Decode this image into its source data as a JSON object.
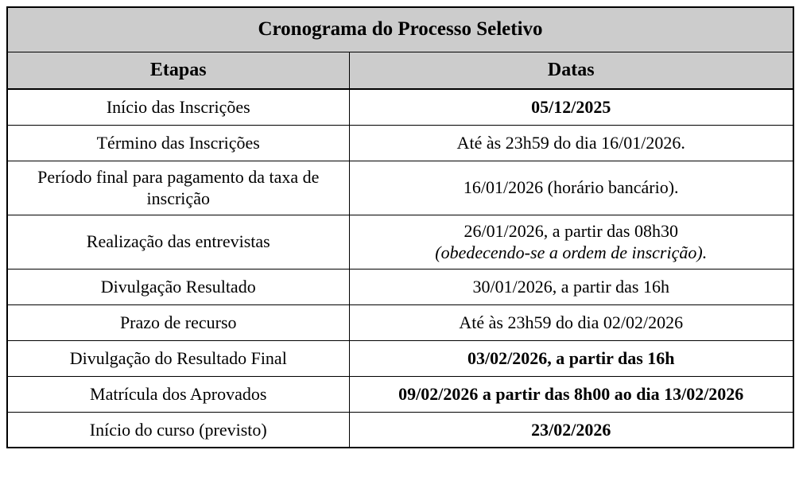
{
  "colors": {
    "header_bg": "#CCCCCC",
    "border": "#000000",
    "text": "#000000"
  },
  "table": {
    "title": "Cronograma do Processo Seletivo",
    "columns": [
      "Etapas",
      "Datas"
    ],
    "rows": [
      {
        "stage": "Início das Inscrições",
        "date": "05/12/2025",
        "bold": true
      },
      {
        "stage": "Término das Inscrições",
        "date": "Até às 23h59 do dia 16/01/2026.",
        "bold": false
      },
      {
        "stage": "Período final para pagamento da taxa de inscrição",
        "date": "16/01/2026 (horário bancário).",
        "bold": false
      },
      {
        "stage": "Realização das entrevistas",
        "date": "26/01/2026, a partir das 08h30",
        "note": "(obedecendo-se a ordem de inscrição).",
        "bold": false
      },
      {
        "stage": "Divulgação Resultado",
        "date": "30/01/2026, a partir das 16h",
        "bold": false
      },
      {
        "stage": "Prazo de recurso",
        "date": "Até às 23h59 do dia 02/02/2026",
        "bold": false
      },
      {
        "stage": "Divulgação do Resultado Final",
        "date": "03/02/2026, a partir das 16h",
        "bold": true
      },
      {
        "stage": "Matrícula dos Aprovados",
        "date": "09/02/2026 a partir das 8h00 ao dia 13/02/2026",
        "bold": true
      },
      {
        "stage": "Início do curso (previsto)",
        "date": "23/02/2026",
        "bold": true
      }
    ]
  }
}
